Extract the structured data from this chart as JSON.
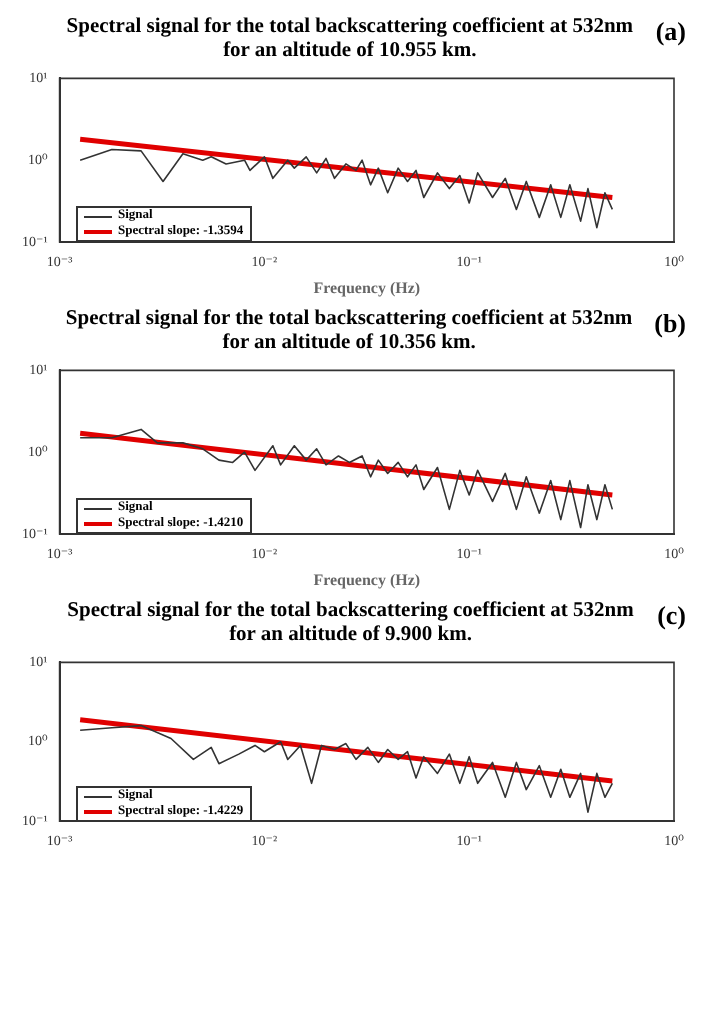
{
  "chart_data": [
    {
      "type": "line",
      "title": "Spectral signal for the total backscattering coefficient at 532nm for an altitude of 10.955 km.",
      "xlabel": "Frequency (Hz)",
      "annotations": [
        "(a)"
      ],
      "log": "xy",
      "legend": "bottom left",
      "marker": "none",
      "line_style": "solid",
      "grid": false,
      "xlim": [
        0.001,
        1
      ],
      "xticks": [
        {
          "value": 0.001,
          "label": "10⁻³"
        },
        {
          "value": 0.01,
          "label": "10⁻²"
        },
        {
          "value": 0.1,
          "label": "10⁻¹"
        },
        {
          "value": 1,
          "label": "10⁰"
        }
      ],
      "ylim": [
        0.1,
        10
      ],
      "yticks": [
        {
          "value": 0.1,
          "label": "10⁻¹"
        },
        {
          "value": 1,
          "label": "10⁰"
        },
        {
          "value": 10,
          "label": "10¹"
        }
      ],
      "series": [
        {
          "name": "Signal",
          "color": "#333333",
          "x": [
            0.00126,
            0.0018,
            0.0025,
            0.0032,
            0.004,
            0.005,
            0.0055,
            0.0065,
            0.008,
            0.0085,
            0.01,
            0.011,
            0.013,
            0.014,
            0.016,
            0.018,
            0.02,
            0.022,
            0.025,
            0.028,
            0.03,
            0.033,
            0.036,
            0.04,
            0.045,
            0.05,
            0.055,
            0.06,
            0.07,
            0.08,
            0.09,
            0.1,
            0.11,
            0.13,
            0.15,
            0.17,
            0.19,
            0.22,
            0.25,
            0.28,
            0.31,
            0.35,
            0.38,
            0.42,
            0.46,
            0.5
          ],
          "values": [
            1.0,
            1.35,
            1.3,
            0.55,
            1.2,
            1.0,
            1.1,
            0.9,
            1.0,
            0.75,
            1.1,
            0.6,
            1.0,
            0.8,
            1.1,
            0.7,
            1.05,
            0.6,
            0.9,
            0.75,
            1.0,
            0.5,
            0.8,
            0.4,
            0.8,
            0.55,
            0.75,
            0.35,
            0.7,
            0.45,
            0.65,
            0.3,
            0.7,
            0.35,
            0.6,
            0.25,
            0.55,
            0.2,
            0.5,
            0.2,
            0.5,
            0.18,
            0.45,
            0.15,
            0.4,
            0.25
          ]
        },
        {
          "name": "Spectral slope: -1.3594",
          "color": "#e00000",
          "x": [
            0.00126,
            0.5
          ],
          "values": [
            1.8,
            0.35
          ]
        }
      ]
    },
    {
      "type": "line",
      "title": "Spectral signal for the total backscattering coefficient at 532nm for an altitude of 10.356 km.",
      "xlabel": "Frequency (Hz)",
      "annotations": [
        "(b)"
      ],
      "log": "xy",
      "legend": "bottom left",
      "marker": "none",
      "line_style": "solid",
      "grid": false,
      "xlim": [
        0.001,
        1
      ],
      "xticks": [
        {
          "value": 0.001,
          "label": "10⁻³"
        },
        {
          "value": 0.01,
          "label": "10⁻²"
        },
        {
          "value": 0.1,
          "label": "10⁻¹"
        },
        {
          "value": 1,
          "label": "10⁰"
        }
      ],
      "ylim": [
        0.1,
        10
      ],
      "yticks": [
        {
          "value": 0.1,
          "label": "10⁻¹"
        },
        {
          "value": 1,
          "label": "10⁰"
        },
        {
          "value": 10,
          "label": "10¹"
        }
      ],
      "series": [
        {
          "name": "Signal",
          "color": "#333333",
          "x": [
            0.00126,
            0.0018,
            0.0025,
            0.003,
            0.004,
            0.005,
            0.006,
            0.007,
            0.008,
            0.009,
            0.011,
            0.012,
            0.014,
            0.016,
            0.018,
            0.02,
            0.023,
            0.026,
            0.03,
            0.033,
            0.036,
            0.04,
            0.045,
            0.05,
            0.055,
            0.06,
            0.07,
            0.08,
            0.09,
            0.1,
            0.11,
            0.13,
            0.15,
            0.17,
            0.19,
            0.22,
            0.25,
            0.28,
            0.31,
            0.35,
            0.38,
            0.42,
            0.46,
            0.5
          ],
          "values": [
            1.5,
            1.5,
            1.9,
            1.3,
            1.3,
            1.1,
            0.8,
            0.75,
            1.0,
            0.6,
            1.2,
            0.7,
            1.2,
            0.8,
            1.1,
            0.7,
            0.9,
            0.75,
            0.9,
            0.5,
            0.8,
            0.55,
            0.75,
            0.5,
            0.7,
            0.35,
            0.65,
            0.2,
            0.6,
            0.3,
            0.6,
            0.25,
            0.55,
            0.2,
            0.5,
            0.18,
            0.45,
            0.15,
            0.45,
            0.12,
            0.4,
            0.15,
            0.4,
            0.2
          ]
        },
        {
          "name": "Spectral slope: -1.4210",
          "color": "#e00000",
          "x": [
            0.00126,
            0.5
          ],
          "values": [
            1.7,
            0.3
          ]
        }
      ]
    },
    {
      "type": "line",
      "title": "Spectral signal for the total backscattering coefficient at 532nm for an altitude of 9.900 km.",
      "annotations": [
        "(c)"
      ],
      "log": "xy",
      "legend": "bottom left",
      "marker": "none",
      "line_style": "solid",
      "grid": false,
      "xlim": [
        0.001,
        1
      ],
      "xticks": [
        {
          "value": 0.001,
          "label": "10⁻³"
        },
        {
          "value": 0.01,
          "label": "10⁻²"
        },
        {
          "value": 0.1,
          "label": "10⁻¹"
        },
        {
          "value": 1,
          "label": "10⁰"
        }
      ],
      "ylim": [
        0.1,
        10
      ],
      "yticks": [
        {
          "value": 0.1,
          "label": "10⁻¹"
        },
        {
          "value": 1,
          "label": "10⁰"
        },
        {
          "value": 10,
          "label": "10¹"
        }
      ],
      "series": [
        {
          "name": "Signal",
          "color": "#333333",
          "x": [
            0.00126,
            0.0018,
            0.0025,
            0.0035,
            0.0045,
            0.0055,
            0.006,
            0.0075,
            0.009,
            0.01,
            0.012,
            0.013,
            0.015,
            0.017,
            0.019,
            0.022,
            0.025,
            0.028,
            0.032,
            0.036,
            0.04,
            0.045,
            0.05,
            0.055,
            0.06,
            0.07,
            0.08,
            0.09,
            0.1,
            0.11,
            0.13,
            0.15,
            0.17,
            0.19,
            0.22,
            0.25,
            0.28,
            0.31,
            0.35,
            0.38,
            0.42,
            0.46,
            0.5
          ],
          "values": [
            1.4,
            1.5,
            1.6,
            1.1,
            0.6,
            0.85,
            0.53,
            0.7,
            0.9,
            0.75,
            1.0,
            0.6,
            0.9,
            0.3,
            0.9,
            0.8,
            0.95,
            0.6,
            0.85,
            0.55,
            0.8,
            0.6,
            0.75,
            0.35,
            0.65,
            0.4,
            0.7,
            0.3,
            0.65,
            0.3,
            0.55,
            0.2,
            0.55,
            0.25,
            0.5,
            0.2,
            0.45,
            0.2,
            0.4,
            0.13,
            0.4,
            0.2,
            0.3
          ]
        },
        {
          "name": "Spectral slope: -1.4229",
          "color": "#e00000",
          "x": [
            0.00126,
            0.5
          ],
          "values": [
            1.9,
            0.32
          ]
        }
      ]
    }
  ]
}
